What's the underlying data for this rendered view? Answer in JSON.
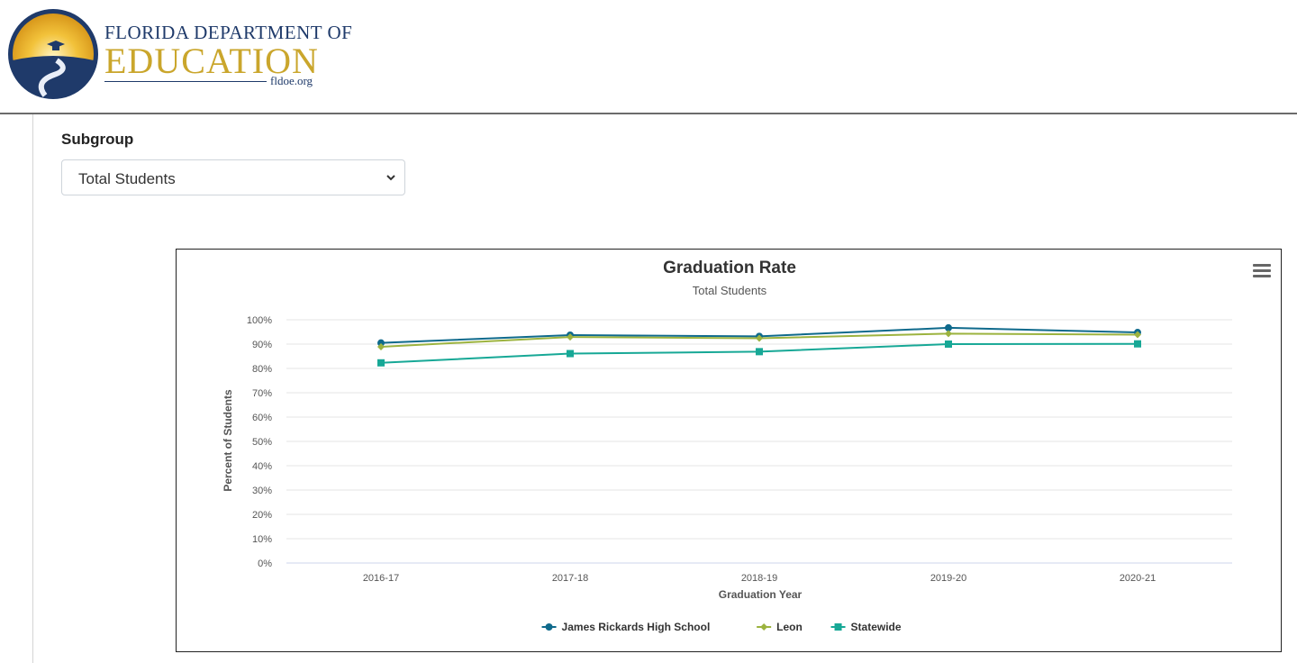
{
  "header": {
    "logo_line1": "FLORIDA DEPARTMENT OF",
    "logo_line2": "EDUCATION",
    "logo_domain": "fldoe.org"
  },
  "filter": {
    "label": "Subgroup",
    "selected": "Total Students"
  },
  "colors": {
    "school": "#0f6a8c",
    "district": "#9cb33f",
    "state": "#17a896"
  },
  "icons": {
    "menu": "hamburger-icon",
    "select": "chevron-down-icon"
  },
  "chart_data": {
    "type": "line",
    "title": "Graduation Rate",
    "subtitle": "Total Students",
    "xlabel": "Graduation Year",
    "ylabel": "Percent of Students",
    "categories": [
      "2016-17",
      "2017-18",
      "2018-19",
      "2019-20",
      "2020-21"
    ],
    "ylim": [
      0,
      100
    ],
    "yticks": [
      "0%",
      "10%",
      "20%",
      "30%",
      "40%",
      "50%",
      "60%",
      "70%",
      "80%",
      "90%",
      "100%"
    ],
    "grid": true,
    "legend_position": "bottom",
    "series": [
      {
        "name": "James Rickards High School",
        "marker": "circle",
        "values": [
          90.5,
          93.7,
          93.2,
          96.7,
          94.8
        ]
      },
      {
        "name": "Leon",
        "marker": "diamond",
        "values": [
          88.9,
          92.9,
          92.4,
          94.3,
          93.9
        ]
      },
      {
        "name": "Statewide",
        "marker": "square",
        "values": [
          82.3,
          86.1,
          86.9,
          90.0,
          90.1
        ]
      }
    ]
  }
}
